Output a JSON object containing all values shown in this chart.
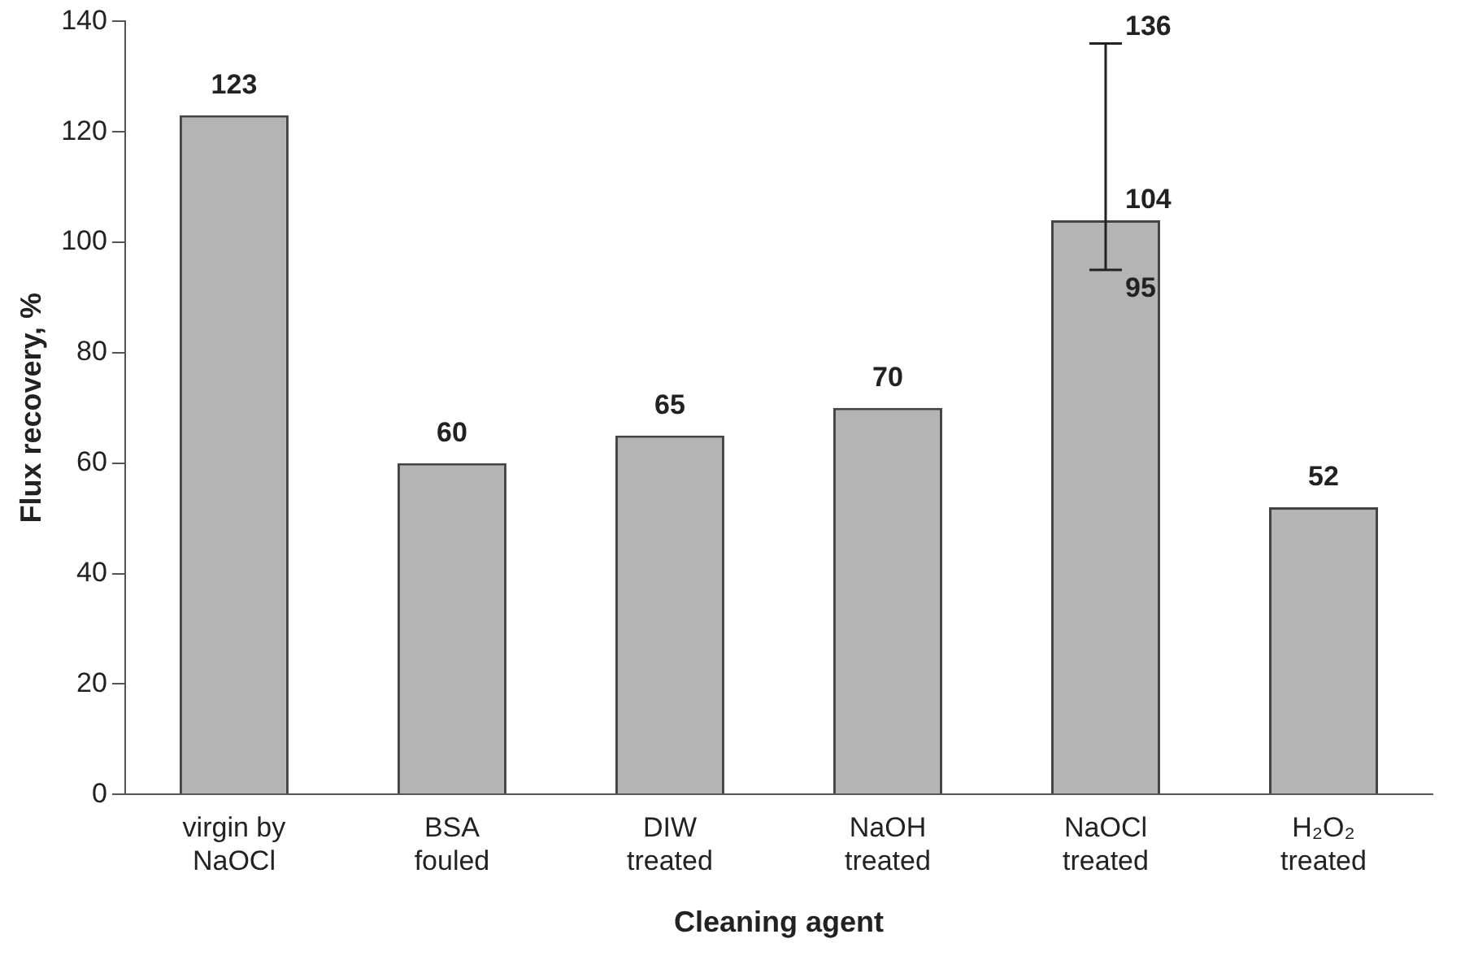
{
  "chart_data": {
    "type": "bar",
    "xlabel": "Cleaning agent",
    "ylabel": "Flux recovery, %",
    "categories": [
      "virgin by\nNaOCl",
      "BSA\nfouled",
      "DIW\ntreated",
      "NaOH\ntreated",
      "NaOCl\ntreated",
      "H₂O₂\ntreated"
    ],
    "values": [
      123,
      60,
      65,
      70,
      104,
      52
    ],
    "color": "#b4b4b4",
    "errors": [
      null,
      null,
      null,
      null,
      [
        95,
        136
      ],
      null
    ],
    "annotations": [
      {
        "text": "136",
        "x": "NaOCl\ntreated",
        "y": 136
      },
      {
        "text": "95",
        "x": "NaOCl\ntreated",
        "y": 95
      }
    ],
    "data_labels": true,
    "ylim": [
      0,
      140
    ],
    "yticks": [
      0,
      20,
      40,
      60,
      80,
      100,
      120,
      140
    ],
    "grid": false,
    "legend": false
  }
}
